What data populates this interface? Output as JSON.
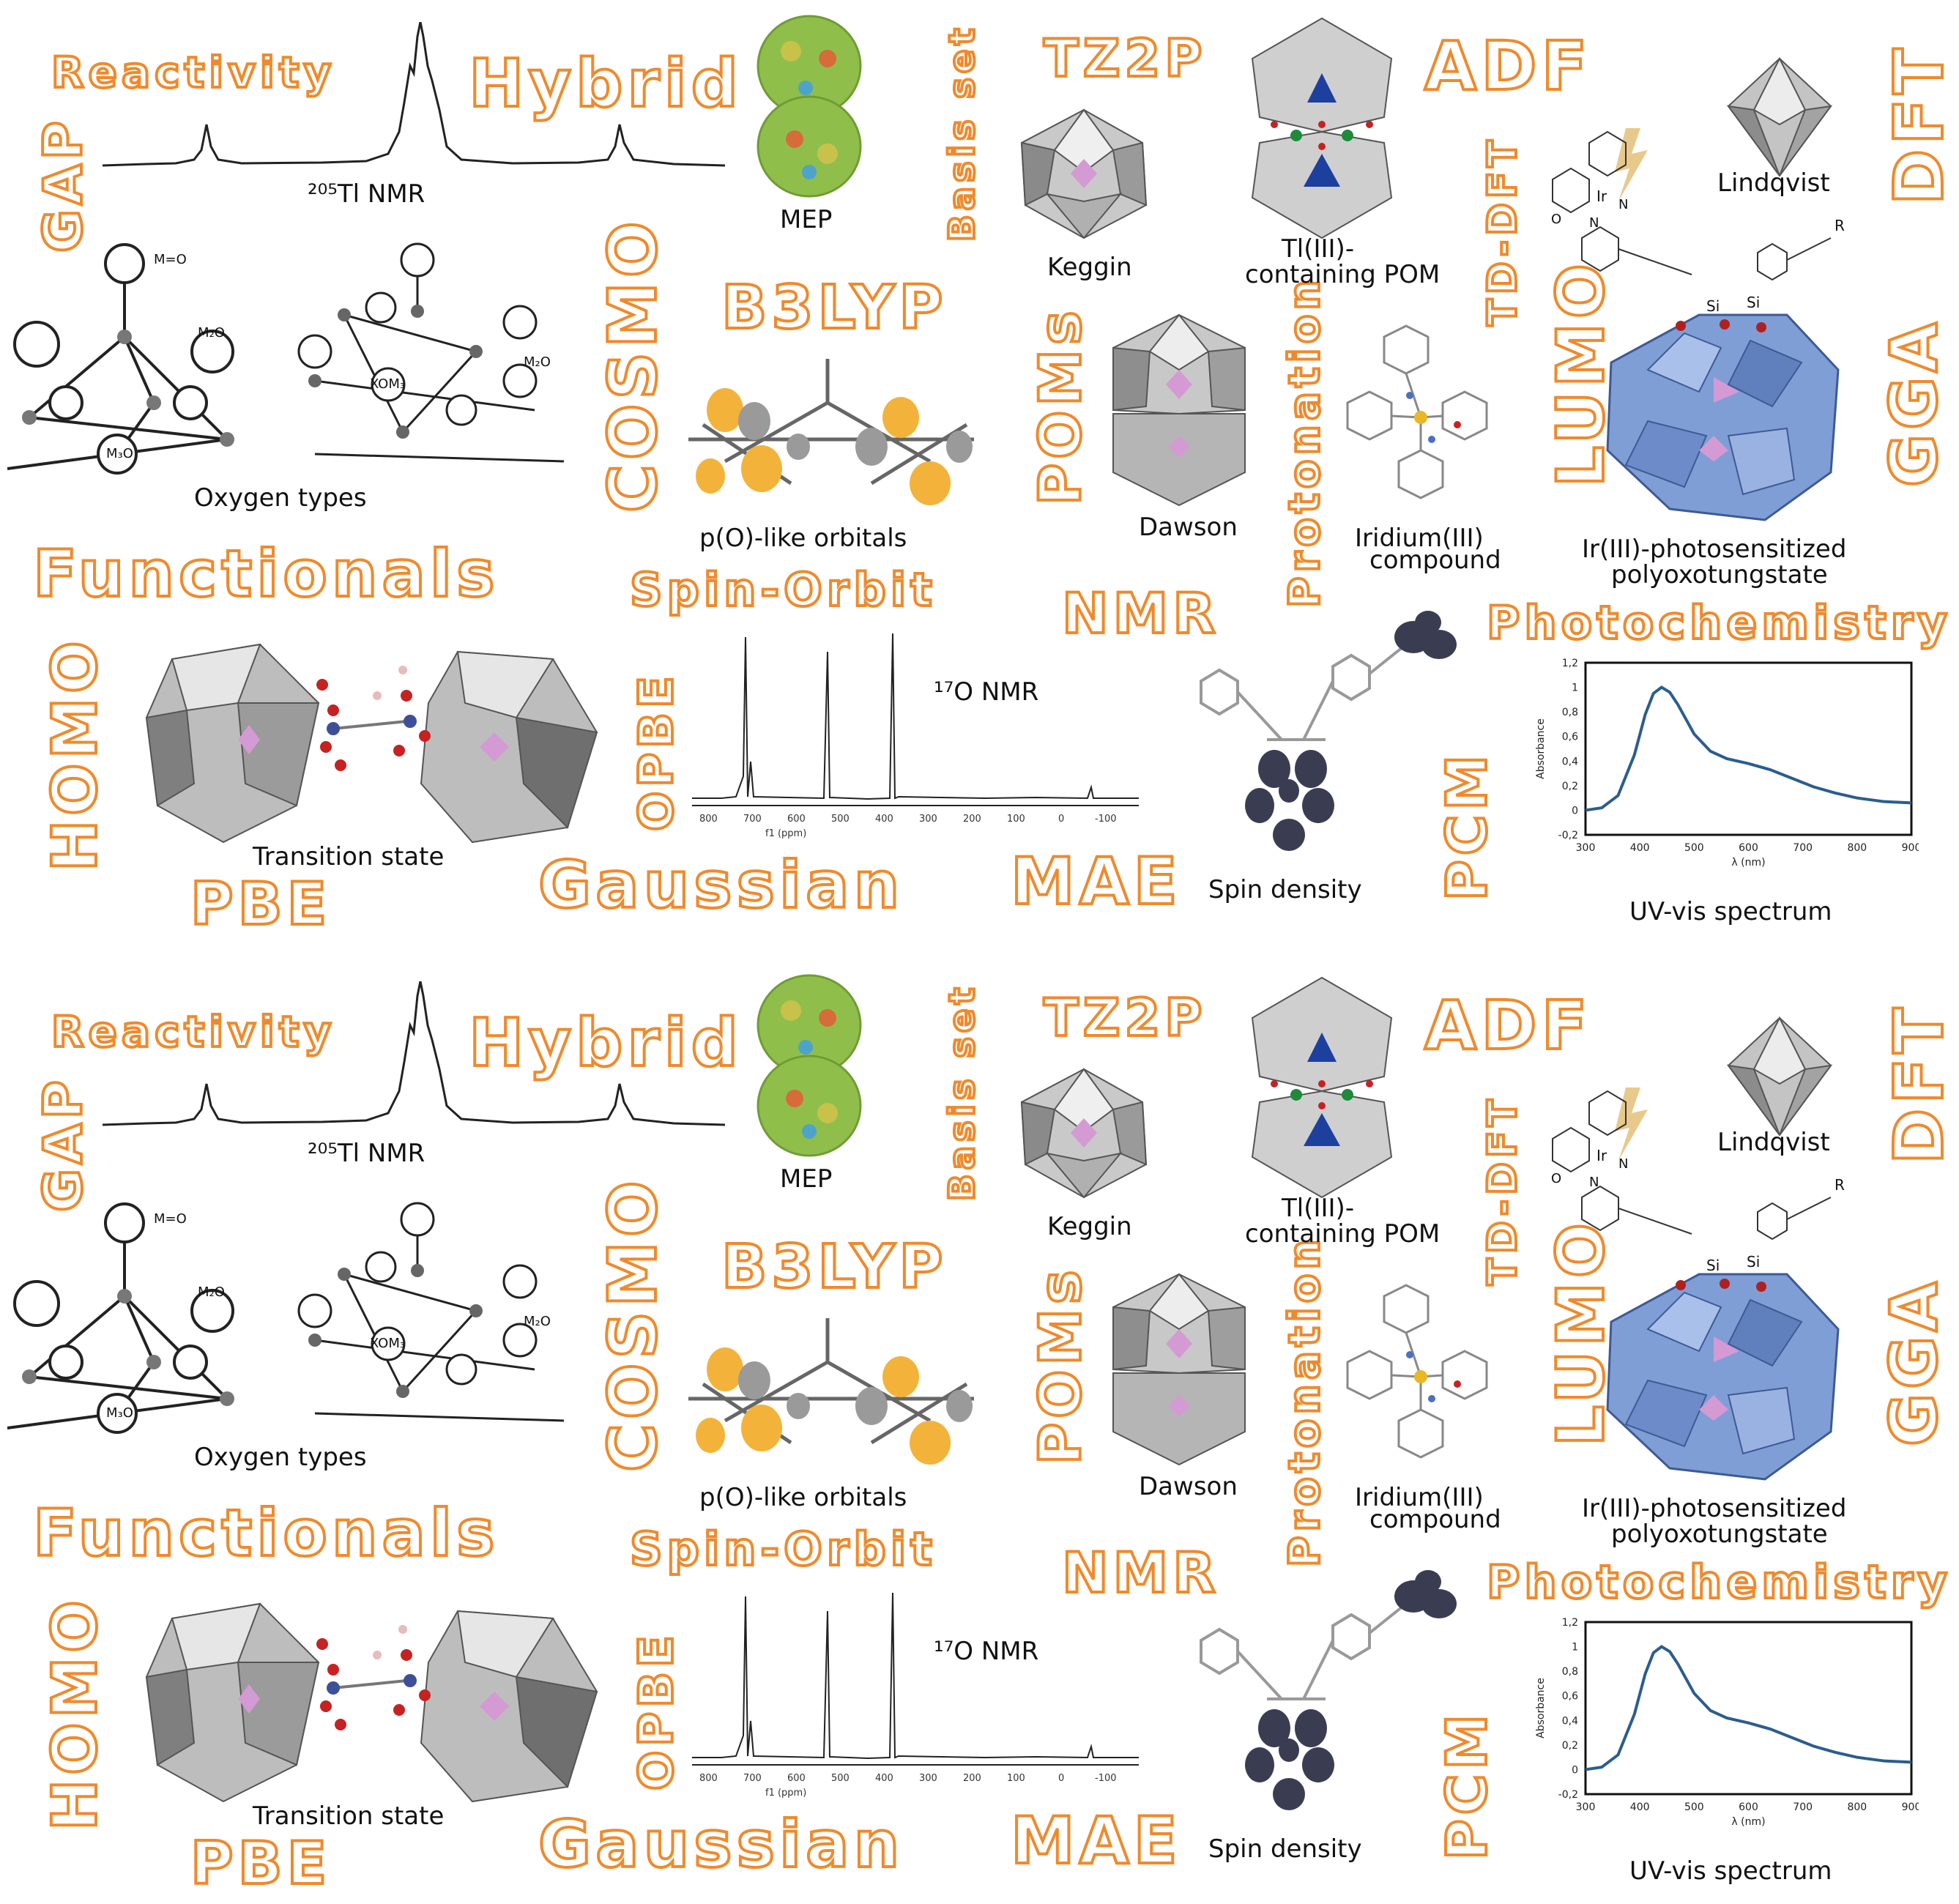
{
  "colors": {
    "accent_orange": "#ef8a2c",
    "pom_grey": "#b8b8b8",
    "pom_dark": "#6d6d6d",
    "pom_blue": "#7f9ed6",
    "pink": "#d49ad4",
    "uv_line": "#2b5d8e"
  },
  "panels": [
    {
      "words": {
        "reactivity": "Reactivity",
        "hybrid": "Hybrid",
        "basis_set": "Basis set",
        "tz2p": "TZ2P",
        "adf": "ADF",
        "dft": "DFT",
        "gap": "GAP",
        "cosmo": "COSMO",
        "b3lyp": "B3LYP",
        "poms": "POMs",
        "protonation": "Protonation",
        "td_dft": "TD-DFT",
        "lumo": "LUMO",
        "gga": "GGA",
        "functionals": "Functionals",
        "spin_orbit": "Spin-Orbit",
        "nmr": "NMR",
        "photochemistry": "Photochemistry",
        "homo": "HOMO",
        "opbe": "OPBE",
        "pcm": "PCM",
        "pbe": "PBE",
        "gaussian": "Gaussian",
        "mae": "MAE"
      },
      "captions": {
        "tl_nmr": "²⁰⁵Tl NMR",
        "mep": "MEP",
        "keggin": "Keggin",
        "tl_pom_line1": "Tl(III)-",
        "tl_pom_line2": "containing POM",
        "lindqvist": "Lindqvist",
        "oxygen_types": "Oxygen types",
        "p_orbitals": "p(O)-like orbitals",
        "dawson": "Dawson",
        "iridium_line1": "Iridium(III)",
        "iridium_line2": "compound",
        "ir_pom_line1": "Ir(III)-photosensitized",
        "ir_pom_line2": "polyoxotungstate",
        "o_nmr": "¹⁷O NMR",
        "transition_state": "Transition state",
        "spin_density": "Spin density",
        "uv_vis": "UV-vis spectrum"
      },
      "labels": {
        "m_o": "M=O",
        "m2o_a": "M₂O",
        "m2o_b": "M₂O",
        "m3o": "M₃O",
        "xom3": "XOM₃",
        "si1": "Si",
        "si2": "Si",
        "r": "R",
        "ir": "Ir",
        "n1": "N",
        "n2": "N",
        "o": "O"
      }
    },
    {
      "words": {
        "reactivity": "Reactivity",
        "hybrid": "Hybrid",
        "basis_set": "Basis set",
        "tz2p": "TZ2P",
        "adf": "ADF",
        "dft": "DFT",
        "gap": "GAP",
        "cosmo": "COSMO",
        "b3lyp": "B3LYP",
        "poms": "POMs",
        "protonation": "Protonation",
        "td_dft": "TD-DFT",
        "lumo": "LUMO",
        "gga": "GGA",
        "functionals": "Functionals",
        "spin_orbit": "Spin-Orbit",
        "nmr": "NMR",
        "photochemistry": "Photochemistry",
        "homo": "HOMO",
        "opbe": "OPBE",
        "pcm": "PCM",
        "pbe": "PBE",
        "gaussian": "Gaussian",
        "mae": "MAE"
      },
      "captions": {
        "tl_nmr": "²⁰⁵Tl NMR",
        "mep": "MEP",
        "keggin": "Keggin",
        "tl_pom_line1": "Tl(III)-",
        "tl_pom_line2": "containing POM",
        "lindqvist": "Lindqvist",
        "oxygen_types": "Oxygen types",
        "p_orbitals": "p(O)-like orbitals",
        "dawson": "Dawson",
        "iridium_line1": "Iridium(III)",
        "iridium_line2": "compound",
        "ir_pom_line1": "Ir(III)-photosensitized",
        "ir_pom_line2": "polyoxotungstate",
        "o_nmr": "¹⁷O NMR",
        "transition_state": "Transition state",
        "spin_density": "Spin density",
        "uv_vis": "UV-vis spectrum"
      },
      "labels": {
        "m_o": "M=O",
        "m2o_a": "M₂O",
        "m2o_b": "M₂O",
        "m3o": "M₃O",
        "xom3": "XOM₃",
        "si1": "Si",
        "si2": "Si",
        "r": "R",
        "ir": "Ir",
        "n1": "N",
        "n2": "N",
        "o": "O"
      }
    }
  ],
  "nmr17o_axis": {
    "ticks": [
      "800",
      "700",
      "600",
      "500",
      "400",
      "300",
      "200",
      "100",
      "0",
      "-100"
    ],
    "unit": "f1 (ppm)"
  },
  "chart_data": [
    {
      "type": "line",
      "title": "",
      "xlabel": "λ (nm)",
      "ylabel": "Absorbance",
      "xlim": [
        300,
        900
      ],
      "ylim": [
        -0.2,
        1.2
      ],
      "x_ticks": [
        "300",
        "400",
        "500",
        "600",
        "700",
        "800",
        "900"
      ],
      "y_ticks": [
        "-0,2",
        "0",
        "0,2",
        "0,4",
        "0,6",
        "0,8",
        "1",
        "1,2"
      ],
      "grid": false,
      "series": [
        {
          "x": [
            300,
            330,
            360,
            390,
            410,
            425,
            440,
            455,
            470,
            500,
            530,
            560,
            600,
            640,
            680,
            720,
            760,
            800,
            850,
            900
          ],
          "y": [
            0.0,
            0.02,
            0.12,
            0.45,
            0.78,
            0.95,
            1.0,
            0.96,
            0.86,
            0.62,
            0.48,
            0.42,
            0.38,
            0.33,
            0.26,
            0.19,
            0.14,
            0.1,
            0.07,
            0.06
          ]
        }
      ]
    },
    {
      "type": "line",
      "title": "",
      "xlabel": "λ (nm)",
      "ylabel": "Absorbance",
      "xlim": [
        300,
        900
      ],
      "ylim": [
        -0.2,
        1.2
      ],
      "x_ticks": [
        "300",
        "400",
        "500",
        "600",
        "700",
        "800",
        "900"
      ],
      "y_ticks": [
        "-0,2",
        "0",
        "0,2",
        "0,4",
        "0,6",
        "0,8",
        "1",
        "1,2"
      ],
      "grid": false,
      "series": [
        {
          "x": [
            300,
            330,
            360,
            390,
            410,
            425,
            440,
            455,
            470,
            500,
            530,
            560,
            600,
            640,
            680,
            720,
            760,
            800,
            850,
            900
          ],
          "y": [
            0.0,
            0.02,
            0.12,
            0.45,
            0.78,
            0.95,
            1.0,
            0.96,
            0.86,
            0.62,
            0.48,
            0.42,
            0.38,
            0.33,
            0.26,
            0.19,
            0.14,
            0.1,
            0.07,
            0.06
          ]
        }
      ]
    }
  ]
}
